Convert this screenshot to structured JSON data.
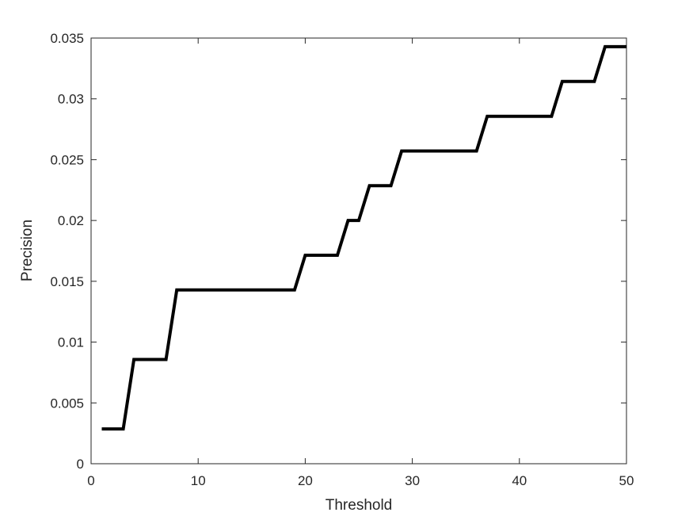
{
  "chart_data": {
    "type": "line",
    "title": "",
    "xlabel": "Threshold",
    "ylabel": "Precision",
    "xlim": [
      0,
      50
    ],
    "ylim": [
      0,
      0.035
    ],
    "xticks": [
      "0",
      "10",
      "20",
      "30",
      "40",
      "50"
    ],
    "yticks": [
      "0",
      "0.005",
      "0.01",
      "0.015",
      "0.02",
      "0.025",
      "0.03",
      "0.035"
    ],
    "grid": false,
    "line_color": "#000000",
    "series": [
      {
        "x": [
          1,
          3,
          4,
          7,
          8,
          19,
          20,
          23,
          24,
          25,
          26,
          28,
          29,
          36,
          37,
          43,
          44,
          47,
          48,
          50
        ],
        "y": [
          0.00286,
          0.00286,
          0.00857,
          0.00857,
          0.01429,
          0.01429,
          0.01714,
          0.01714,
          0.02,
          0.02,
          0.02286,
          0.02286,
          0.02571,
          0.02571,
          0.02857,
          0.02857,
          0.03143,
          0.03143,
          0.03429,
          0.03429
        ]
      }
    ]
  }
}
